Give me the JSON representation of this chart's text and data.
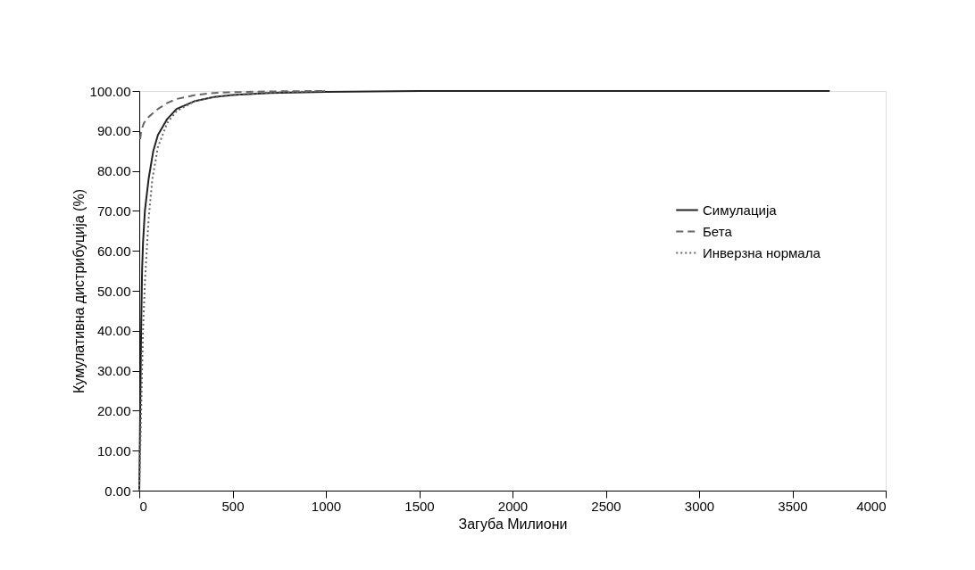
{
  "chart_data": {
    "type": "line",
    "xlabel": "Загуба Милиони",
    "ylabel": "Кумулативна дистрибуција (%)",
    "xlim": [
      0,
      4000
    ],
    "xticks": [
      0,
      500,
      1000,
      1500,
      2000,
      2500,
      3000,
      3500,
      4000
    ],
    "ylim": [
      0,
      100
    ],
    "yticks": [
      {
        "value": 0,
        "label": "0.00"
      },
      {
        "value": 10,
        "label": "10.00"
      },
      {
        "value": 20,
        "label": "20.00"
      },
      {
        "value": 30,
        "label": "30.00"
      },
      {
        "value": 40,
        "label": "40.00"
      },
      {
        "value": 50,
        "label": "50.00"
      },
      {
        "value": 60,
        "label": "60.00"
      },
      {
        "value": 70,
        "label": "70.00"
      },
      {
        "value": 80,
        "label": "80.00"
      },
      {
        "value": 90,
        "label": "90.00"
      },
      {
        "value": 100,
        "label": "100.00"
      }
    ],
    "grid": false,
    "legend": "right",
    "marker": "none",
    "series": [
      {
        "name": "Симулација",
        "color": "#222222",
        "line_style": "solid",
        "x": [
          0,
          5,
          10,
          15,
          20,
          30,
          50,
          75,
          100,
          150,
          200,
          300,
          400,
          500,
          700,
          1000,
          1500,
          2000,
          3000,
          3700
        ],
        "values": [
          0,
          20,
          40,
          55,
          62,
          70,
          78,
          85,
          89,
          93,
          95.5,
          97.5,
          98.5,
          99,
          99.5,
          99.8,
          100,
          100,
          100,
          100
        ]
      },
      {
        "name": "Бета",
        "color": "#666666",
        "line_style": "dashed",
        "x": [
          5,
          10,
          25,
          50,
          100,
          150,
          200,
          300,
          400,
          500,
          700,
          1000
        ],
        "values": [
          88,
          90,
          92,
          93.5,
          95.5,
          97,
          98,
          99,
          99.5,
          99.7,
          99.9,
          100
        ]
      },
      {
        "name": "Инверзна нормала",
        "color": "#666666",
        "line_style": "dotted",
        "x": [
          0,
          10,
          20,
          30,
          50,
          70,
          100,
          150,
          200,
          300,
          400,
          500,
          700,
          1000
        ],
        "values": [
          0,
          20,
          40,
          52,
          68,
          78,
          86,
          92,
          95,
          97.5,
          98.5,
          99,
          99.6,
          100
        ]
      }
    ]
  }
}
